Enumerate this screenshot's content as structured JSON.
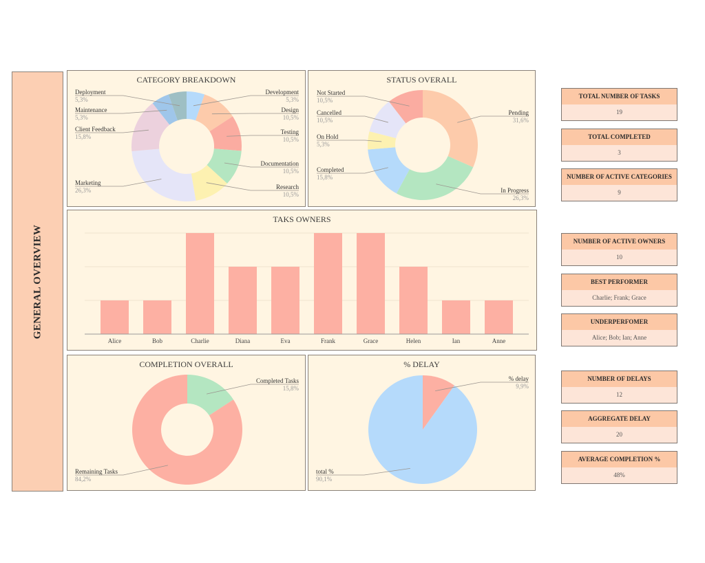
{
  "sidebar": {
    "title": "GENERAL OVERVIEW"
  },
  "category": {
    "title": "CATEGORY BREAKDOWN"
  },
  "status": {
    "title": "STATUS OVERALL"
  },
  "owners": {
    "title": "TAKS OWNERS"
  },
  "completion": {
    "title": "COMPLETION OVERALL"
  },
  "delay": {
    "title": "% DELAY"
  },
  "chart_data": [
    {
      "type": "pie",
      "donut": true,
      "title": "CATEGORY BREAKDOWN",
      "slices": [
        {
          "label": "Development",
          "value": 5.3,
          "pct": "5,3%",
          "color": "#b5dafb"
        },
        {
          "label": "Design",
          "value": 10.5,
          "pct": "10,5%",
          "color": "#fdcbab"
        },
        {
          "label": "Testing",
          "value": 10.5,
          "pct": "10,5%",
          "color": "#fbaca1"
        },
        {
          "label": "Documentation",
          "value": 10.5,
          "pct": "10,5%",
          "color": "#b4e6c1"
        },
        {
          "label": "Research",
          "value": 10.5,
          "pct": "10,5%",
          "color": "#fdf1b1"
        },
        {
          "label": "Marketing",
          "value": 26.3,
          "pct": "26,3%",
          "color": "#e5e5f8"
        },
        {
          "label": "Client Feedback",
          "value": 15.8,
          "pct": "15,8%",
          "color": "#ecd1dd"
        },
        {
          "label": "Maintenance",
          "value": 5.3,
          "pct": "5,3%",
          "color": "#9fc6ea"
        },
        {
          "label": "Deployment",
          "value": 5.3,
          "pct": "5,3%",
          "color": "#9ebfc4"
        }
      ]
    },
    {
      "type": "pie",
      "donut": true,
      "title": "STATUS OVERALL",
      "slices": [
        {
          "label": "Pending",
          "value": 31.6,
          "pct": "31,6%",
          "color": "#fdcbab"
        },
        {
          "label": "In Progress",
          "value": 26.3,
          "pct": "26,3%",
          "color": "#b4e6c1"
        },
        {
          "label": "Completed",
          "value": 15.8,
          "pct": "15,8%",
          "color": "#b5dafb"
        },
        {
          "label": "On Hold",
          "value": 5.3,
          "pct": "5,3%",
          "color": "#fdf1b1"
        },
        {
          "label": "Cancelled",
          "value": 10.5,
          "pct": "10,5%",
          "color": "#e5e5f8"
        },
        {
          "label": "Not Started",
          "value": 10.5,
          "pct": "10,5%",
          "color": "#fbaca1"
        }
      ]
    },
    {
      "type": "bar",
      "title": "TAKS OWNERS",
      "categories": [
        "Alice",
        "Bob",
        "Charlie",
        "Diana",
        "Eva",
        "Frank",
        "Grace",
        "Helen",
        "Ian",
        "Anne"
      ],
      "values": [
        1,
        1,
        3,
        2,
        2,
        3,
        3,
        2,
        1,
        1
      ],
      "ylim": [
        0,
        3
      ],
      "grid": true,
      "color": "#fdb0a3"
    },
    {
      "type": "pie",
      "donut": true,
      "title": "COMPLETION OVERALL",
      "slices": [
        {
          "label": "Completed Tasks",
          "value": 15.8,
          "pct": "15,8%",
          "color": "#b4e6c1"
        },
        {
          "label": "Remaining Tasks",
          "value": 84.2,
          "pct": "84,2%",
          "color": "#fdb0a3"
        }
      ]
    },
    {
      "type": "pie",
      "donut": false,
      "title": "% DELAY",
      "slices": [
        {
          "label": "% delay",
          "value": 9.9,
          "pct": "9,9%",
          "color": "#fdb0a3"
        },
        {
          "label": "total %",
          "value": 90.1,
          "pct": "90,1%",
          "color": "#b5dafb"
        }
      ]
    }
  ],
  "cards": [
    {
      "title": "TOTAL NUMBER OF TASKS",
      "value": "19"
    },
    {
      "title": "TOTAL COMPLETED",
      "value": "3"
    },
    {
      "title": "NUMBER OF ACTIVE CATEGORIES",
      "value": "9"
    },
    {
      "title": "NUMBER OF ACTIVE OWNERS",
      "value": "10"
    },
    {
      "title": "BEST PERFORMER",
      "value": "Charlie; Frank; Grace"
    },
    {
      "title": "UNDERPERFOMER",
      "value": "Alice; Bob; Ian; Anne"
    },
    {
      "title": "NUMBER OF DELAYS",
      "value": "12"
    },
    {
      "title": "AGGREGATE DELAY",
      "value": "20"
    },
    {
      "title": "AVERAGE COMPLETION %",
      "value": "48%"
    }
  ]
}
